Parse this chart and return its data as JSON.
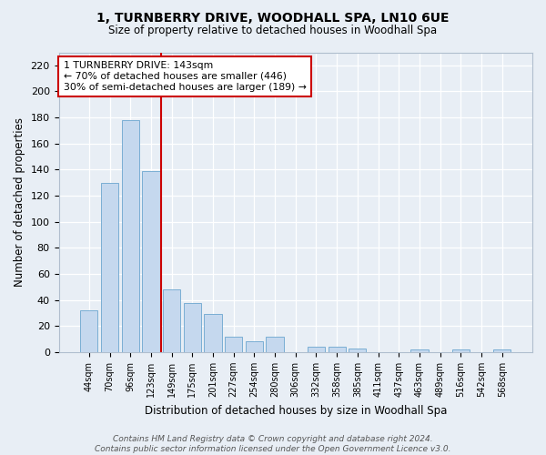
{
  "title1": "1, TURNBERRY DRIVE, WOODHALL SPA, LN10 6UE",
  "title2": "Size of property relative to detached houses in Woodhall Spa",
  "xlabel": "Distribution of detached houses by size in Woodhall Spa",
  "ylabel": "Number of detached properties",
  "categories": [
    "44sqm",
    "70sqm",
    "96sqm",
    "123sqm",
    "149sqm",
    "175sqm",
    "201sqm",
    "227sqm",
    "254sqm",
    "280sqm",
    "306sqm",
    "332sqm",
    "358sqm",
    "385sqm",
    "411sqm",
    "437sqm",
    "463sqm",
    "489sqm",
    "516sqm",
    "542sqm",
    "568sqm"
  ],
  "values": [
    32,
    130,
    178,
    139,
    48,
    38,
    29,
    12,
    8,
    12,
    0,
    4,
    4,
    3,
    0,
    0,
    2,
    0,
    2,
    0,
    2
  ],
  "bar_color": "#c5d8ee",
  "bar_edge_color": "#7aaed4",
  "vline_color": "#cc0000",
  "vline_x": 3.5,
  "annotation_text": "1 TURNBERRY DRIVE: 143sqm\n← 70% of detached houses are smaller (446)\n30% of semi-detached houses are larger (189) →",
  "annotation_box_color": "#ffffff",
  "annotation_box_edge": "#cc0000",
  "ylim": [
    0,
    230
  ],
  "yticks": [
    0,
    20,
    40,
    60,
    80,
    100,
    120,
    140,
    160,
    180,
    200,
    220
  ],
  "footer": "Contains HM Land Registry data © Crown copyright and database right 2024.\nContains public sector information licensed under the Open Government Licence v3.0.",
  "bg_color": "#e8eef5",
  "grid_color": "#ffffff",
  "fig_bg_color": "#e8eef5"
}
